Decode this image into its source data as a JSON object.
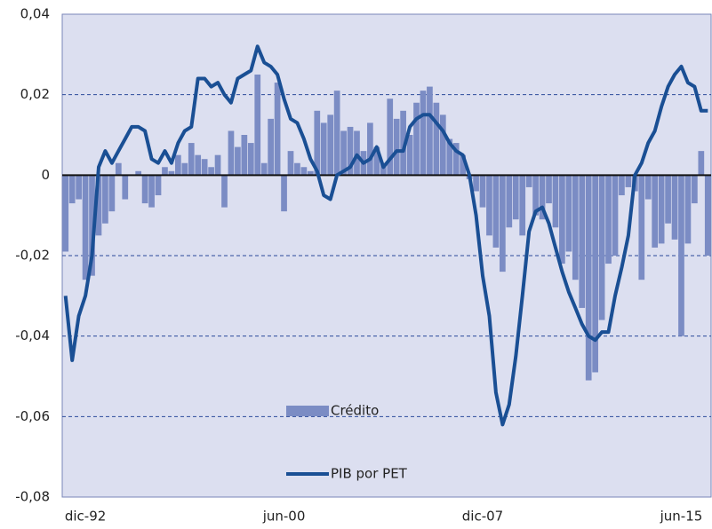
{
  "chart_data": {
    "type": "bar_line",
    "categories": [
      null,
      null,
      null,
      "dic-92",
      null,
      null,
      null,
      null,
      null,
      null,
      null,
      null,
      null,
      null,
      null,
      null,
      null,
      null,
      null,
      null,
      null,
      null,
      null,
      null,
      null,
      null,
      null,
      null,
      null,
      null,
      null,
      null,
      null,
      "jun-00",
      null,
      null,
      null,
      null,
      null,
      null,
      null,
      null,
      null,
      null,
      null,
      null,
      null,
      null,
      null,
      null,
      null,
      null,
      null,
      null,
      null,
      null,
      null,
      null,
      null,
      null,
      null,
      null,
      null,
      "dic-07",
      null,
      null,
      null,
      null,
      null,
      null,
      null,
      null,
      null,
      null,
      null,
      null,
      null,
      null,
      null,
      null,
      null,
      null,
      null,
      null,
      null,
      null,
      null,
      null,
      null,
      null,
      null,
      null,
      null,
      "jun-15",
      null,
      null,
      null,
      null
    ],
    "series": [
      {
        "name": "Crédito",
        "kind": "bar",
        "color": "#7b8cc4",
        "values": [
          -0.019,
          -0.007,
          -0.006,
          -0.026,
          -0.025,
          -0.015,
          -0.012,
          -0.009,
          0.003,
          -0.006,
          0,
          0.001,
          -0.007,
          -0.008,
          -0.005,
          0.002,
          0.001,
          0.005,
          0.003,
          0.008,
          0.005,
          0.004,
          0.002,
          0.005,
          -0.008,
          0.011,
          0.007,
          0.01,
          0.008,
          0.025,
          0.003,
          0.014,
          0.023,
          -0.009,
          0.006,
          0.003,
          0.002,
          0.001,
          0.016,
          0.013,
          0.015,
          0.021,
          0.011,
          0.012,
          0.011,
          0.006,
          0.013,
          0.007,
          0.003,
          0.019,
          0.014,
          0.016,
          0.01,
          0.018,
          0.021,
          0.022,
          0.018,
          0.015,
          0.009,
          0.008,
          0.005,
          -0.001,
          -0.004,
          -0.008,
          -0.015,
          -0.018,
          -0.024,
          -0.013,
          -0.011,
          -0.015,
          -0.003,
          -0.01,
          -0.011,
          -0.007,
          -0.013,
          -0.022,
          -0.019,
          -0.026,
          -0.033,
          -0.051,
          -0.049,
          -0.036,
          -0.022,
          -0.02,
          -0.005,
          -0.003,
          -0.004,
          -0.026,
          -0.006,
          -0.018,
          -0.017,
          -0.012,
          -0.016,
          -0.04,
          -0.017,
          -0.007,
          0.006,
          -0.02
        ]
      },
      {
        "name": "PIB por PET",
        "kind": "line",
        "color": "#1a4f94",
        "values": [
          -0.03,
          -0.046,
          -0.035,
          -0.03,
          -0.02,
          0.002,
          0.006,
          0.003,
          0.006,
          0.009,
          0.012,
          0.012,
          0.011,
          0.004,
          0.003,
          0.006,
          0.003,
          0.008,
          0.011,
          0.012,
          0.024,
          0.024,
          0.022,
          0.023,
          0.02,
          0.018,
          0.024,
          0.025,
          0.026,
          0.032,
          0.028,
          0.027,
          0.025,
          0.019,
          0.014,
          0.013,
          0.009,
          0.004,
          0.001,
          -0.005,
          -0.006,
          0,
          0.001,
          0.002,
          0.005,
          0.003,
          0.004,
          0.007,
          0.002,
          0.004,
          0.006,
          0.006,
          0.012,
          0.014,
          0.015,
          0.015,
          0.013,
          0.011,
          0.008,
          0.006,
          0.005,
          0,
          -0.01,
          -0.025,
          -0.035,
          -0.054,
          -0.062,
          -0.057,
          -0.045,
          -0.03,
          -0.014,
          -0.009,
          -0.008,
          -0.012,
          -0.018,
          -0.024,
          -0.029,
          -0.033,
          -0.037,
          -0.04,
          -0.041,
          -0.039,
          -0.039,
          -0.03,
          -0.023,
          -0.015,
          0,
          0.003,
          0.008,
          0.011,
          0.017,
          0.022,
          0.025,
          0.027,
          0.023,
          0.022,
          0.016,
          0.016
        ]
      }
    ],
    "ylim": [
      -0.08,
      0.04
    ],
    "yticks": [
      {
        "value": -0.08,
        "label": "-0,08"
      },
      {
        "value": -0.06,
        "label": "-0,06"
      },
      {
        "value": -0.04,
        "label": "-0,04"
      },
      {
        "value": -0.02,
        "label": "-0,02"
      },
      0,
      {
        "value": 0.02,
        "label": "0,02"
      },
      {
        "value": 0.04,
        "label": "0,04"
      }
    ],
    "grid": true,
    "legend": "bottom-center"
  }
}
